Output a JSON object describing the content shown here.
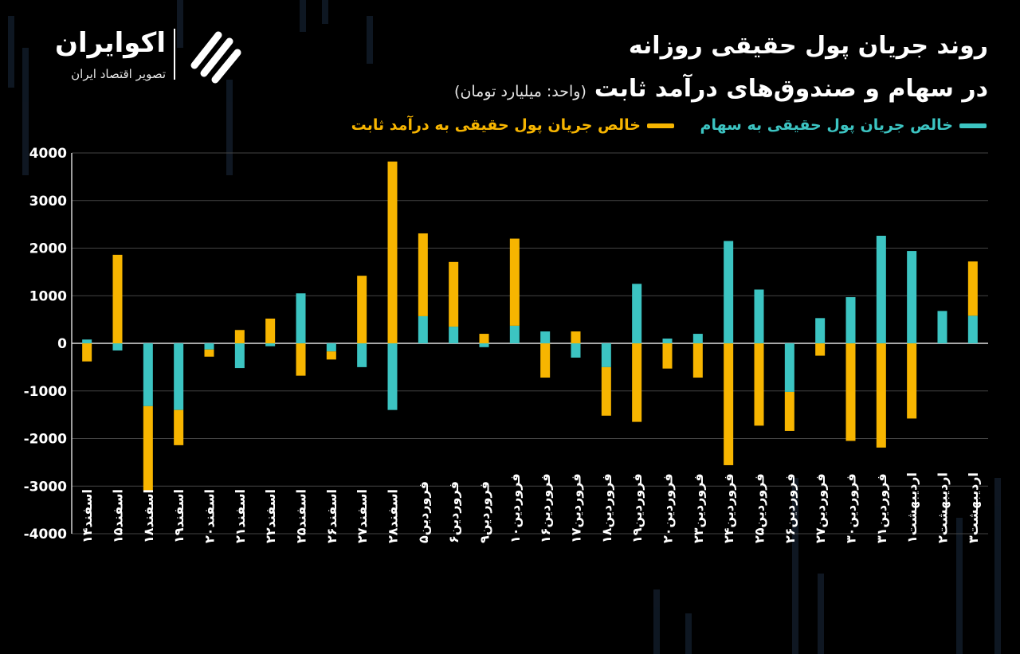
{
  "brand": {
    "name": "اکوایران",
    "tagline": "تصویر اقتصاد ایران"
  },
  "title": {
    "line1": "روند جریان پول حقیقی روزانه",
    "line2": "در سهام و صندوق‌های درآمد ثابت",
    "unit": "(واحد: میلیارد تومان)"
  },
  "colors": {
    "stocks": "#3cc4c2",
    "fixed_income": "#f7b500",
    "background": "#000000",
    "grid": "#444444"
  },
  "chart_data": {
    "type": "bar",
    "stacked": true,
    "ylim": [
      -4000,
      4000
    ],
    "yticks": [
      4000,
      3000,
      2000,
      1000,
      0,
      -1000,
      -2000,
      -3000,
      -4000
    ],
    "ytick_labels": [
      "4000",
      "3000",
      "2000",
      "1000",
      "0",
      "-1000",
      "-2000",
      "-3000",
      "-4000"
    ],
    "grid": true,
    "legend_position": "top-right",
    "categories": [
      "اسفند۱۴",
      "اسفند۱۵",
      "اسفند۱۸",
      "اسفند۱۹",
      "اسفند۲۰",
      "اسفند۲۱",
      "اسفند۲۲",
      "اسفند۲۵",
      "اسفند۲۶",
      "اسفند۲۷",
      "اسفند۲۸",
      "فروردین۵",
      "فروردین۶",
      "فروردین۹",
      "فروردین۱۰",
      "فروردین۱۶",
      "فروردین۱۷",
      "فروردین۱۸",
      "فروردین۱۹",
      "فروردین۲۰",
      "فروردین۲۳",
      "فروردین۲۴",
      "فروردین۲۵",
      "فروردین۲۶",
      "فروردین۲۷",
      "فروردین۳۰",
      "فروردین۳۱",
      "اردیبهشت۱",
      "اردیبهشت۲",
      "اردیبهشت۳"
    ],
    "series": [
      {
        "name": "خالص جریان پول حقیقی به سهام",
        "color": "#3cc4c2",
        "values": [
          80,
          -150,
          -1320,
          -1400,
          -130,
          -520,
          -60,
          1050,
          -170,
          -500,
          -1400,
          570,
          350,
          -80,
          370,
          250,
          -300,
          -500,
          1250,
          100,
          200,
          2150,
          1130,
          -1020,
          530,
          970,
          2260,
          1940,
          680,
          580
        ]
      },
      {
        "name": "خالص جریان پول حقیقی به درآمد ثابت",
        "color": "#f7b500",
        "values": [
          -380,
          1860,
          -1800,
          -740,
          -150,
          280,
          520,
          -680,
          -170,
          1420,
          3820,
          1740,
          1360,
          200,
          1830,
          -720,
          250,
          -1020,
          -1650,
          -530,
          -720,
          -2560,
          -1730,
          -820,
          -260,
          -2050,
          -2190,
          -1580,
          0,
          1140
        ]
      }
    ]
  }
}
